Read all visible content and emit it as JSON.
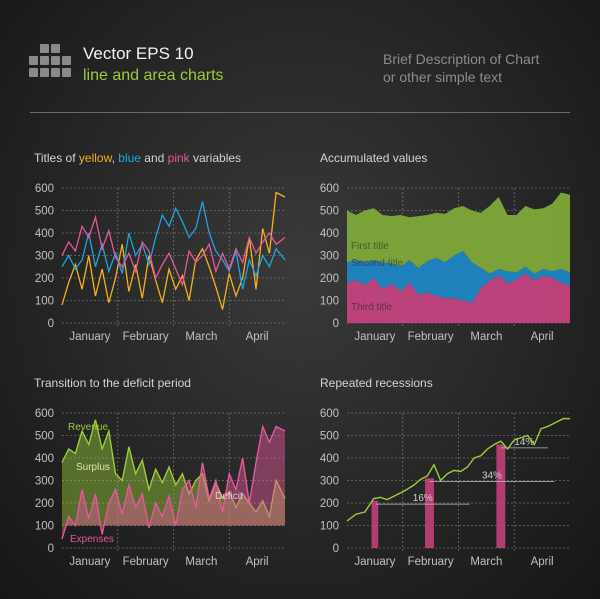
{
  "header": {
    "title": "Vector EPS 10",
    "subtitle": "line and area charts",
    "description_line1": "Brief Description of Chart",
    "description_line2": "or other simple text"
  },
  "colors": {
    "yellow": "#f4b21b",
    "blue": "#1fa3e3",
    "pink": "#e4589c",
    "green": "#9ccc3c",
    "axis_text": "#c0c0c0",
    "grid": "#6f6f6f"
  },
  "panel1": {
    "title_part1": "Titles of ",
    "title_yellow": "yellow",
    "title_sep1": ", ",
    "title_blue": "blue",
    "title_sep2": " and ",
    "title_pink": "pink",
    "title_part2": " variables"
  },
  "panel2": {
    "title": "Accumulated values"
  },
  "panel3": {
    "title": "Transition to the deficit period"
  },
  "panel4": {
    "title": "Repeated recessions"
  },
  "chart_data": [
    {
      "type": "line",
      "ylim": [
        0,
        600
      ],
      "yticks": [
        0,
        100,
        200,
        300,
        400,
        500,
        600
      ],
      "xlim": [
        0,
        100
      ],
      "categories": [
        "January",
        "February",
        "March",
        "April"
      ],
      "category_positions": [
        12.5,
        37.5,
        62.5,
        87.5
      ],
      "grid": true,
      "series": [
        {
          "color": "yellow",
          "x": [
            0,
            3,
            6,
            9,
            12,
            15,
            18,
            21,
            24,
            27,
            30,
            33,
            36,
            39,
            42,
            45,
            48,
            51,
            54,
            57,
            60,
            63,
            66,
            69,
            72,
            75,
            78,
            81,
            84,
            87,
            90,
            93,
            96,
            100
          ],
          "y": [
            80,
            180,
            260,
            150,
            300,
            120,
            240,
            90,
            200,
            350,
            140,
            260,
            110,
            300,
            190,
            90,
            240,
            150,
            210,
            100,
            280,
            330,
            250,
            160,
            60,
            220,
            120,
            200,
            380,
            150,
            420,
            310,
            580,
            560
          ]
        },
        {
          "color": "blue",
          "x": [
            0,
            3,
            6,
            9,
            12,
            15,
            18,
            21,
            24,
            27,
            30,
            33,
            36,
            39,
            42,
            45,
            48,
            51,
            54,
            57,
            60,
            63,
            66,
            69,
            72,
            75,
            78,
            81,
            84,
            87,
            90,
            93,
            96,
            100
          ],
          "y": [
            250,
            300,
            240,
            280,
            400,
            250,
            350,
            230,
            310,
            220,
            400,
            300,
            350,
            260,
            380,
            480,
            430,
            510,
            450,
            380,
            420,
            540,
            400,
            320,
            280,
            230,
            320,
            150,
            280,
            210,
            300,
            250,
            330,
            280
          ]
        },
        {
          "color": "pink",
          "x": [
            0,
            3,
            6,
            9,
            12,
            15,
            18,
            21,
            24,
            27,
            30,
            33,
            36,
            39,
            42,
            45,
            48,
            51,
            54,
            57,
            60,
            63,
            66,
            69,
            72,
            75,
            78,
            81,
            84,
            87,
            90,
            93,
            96,
            100
          ],
          "y": [
            300,
            360,
            320,
            430,
            380,
            470,
            330,
            410,
            290,
            250,
            310,
            230,
            360,
            320,
            200,
            260,
            310,
            240,
            170,
            320,
            270,
            300,
            350,
            230,
            310,
            240,
            330,
            270,
            380,
            310,
            360,
            400,
            350,
            380
          ]
        }
      ]
    },
    {
      "type": "area",
      "ylim": [
        0,
        600
      ],
      "yticks": [
        0,
        100,
        200,
        300,
        400,
        500,
        600
      ],
      "xlim": [
        0,
        100
      ],
      "categories": [
        "January",
        "February",
        "March",
        "April"
      ],
      "category_positions": [
        12.5,
        37.5,
        62.5,
        87.5
      ],
      "stacked": true,
      "grid": true,
      "x": [
        0,
        4,
        8,
        12,
        16,
        20,
        24,
        28,
        32,
        36,
        40,
        44,
        48,
        52,
        56,
        60,
        64,
        68,
        72,
        76,
        80,
        84,
        88,
        92,
        96,
        100
      ],
      "series": [
        {
          "name": "Third title",
          "color": "pink",
          "values": [
            180,
            190,
            170,
            200,
            150,
            175,
            140,
            180,
            125,
            135,
            120,
            110,
            110,
            100,
            90,
            155,
            190,
            210,
            175,
            195,
            220,
            190,
            210,
            200,
            180,
            165
          ]
        },
        {
          "name": "Second title",
          "color": "blue",
          "values": [
            90,
            90,
            100,
            80,
            120,
            90,
            110,
            100,
            120,
            140,
            170,
            160,
            190,
            220,
            180,
            90,
            30,
            30,
            55,
            30,
            30,
            30,
            30,
            30,
            60,
            60
          ]
        },
        {
          "name": "First title",
          "color": "green",
          "values": [
            230,
            200,
            230,
            230,
            210,
            210,
            230,
            190,
            230,
            205,
            200,
            215,
            210,
            200,
            230,
            245,
            300,
            320,
            250,
            255,
            270,
            285,
            270,
            300,
            340,
            345
          ]
        }
      ]
    },
    {
      "type": "area",
      "ylim": [
        0,
        600
      ],
      "yticks": [
        0,
        100,
        200,
        300,
        400,
        500,
        600
      ],
      "xlim": [
        0,
        100
      ],
      "categories": [
        "January",
        "February",
        "March",
        "April"
      ],
      "category_positions": [
        12.5,
        37.5,
        62.5,
        87.5
      ],
      "grid": true,
      "annotations": [
        "Revenue",
        "Surplus",
        "Deficit",
        "Expenses"
      ],
      "series": [
        {
          "name": "Revenue",
          "color": "green",
          "x": [
            0,
            3,
            6,
            9,
            12,
            15,
            18,
            21,
            24,
            27,
            30,
            33,
            36,
            39,
            42,
            45,
            48,
            51,
            54,
            57,
            60,
            63,
            66,
            69,
            72,
            75,
            78,
            81,
            84,
            87,
            90,
            93,
            96,
            100
          ],
          "y": [
            380,
            440,
            420,
            520,
            460,
            570,
            440,
            520,
            330,
            300,
            450,
            330,
            390,
            260,
            350,
            290,
            360,
            280,
            330,
            240,
            300,
            330,
            210,
            290,
            220,
            250,
            180,
            240,
            200,
            160,
            210,
            140,
            300,
            220
          ]
        },
        {
          "name": "Expenses",
          "color": "pink",
          "x": [
            0,
            3,
            6,
            9,
            12,
            15,
            18,
            21,
            24,
            27,
            30,
            33,
            36,
            39,
            42,
            45,
            48,
            51,
            54,
            57,
            60,
            63,
            66,
            69,
            72,
            75,
            78,
            81,
            84,
            87,
            90,
            93,
            96,
            100
          ],
          "y": [
            40,
            140,
            100,
            260,
            130,
            240,
            60,
            200,
            260,
            150,
            280,
            180,
            240,
            90,
            200,
            140,
            230,
            100,
            260,
            300,
            180,
            380,
            220,
            300,
            160,
            330,
            260,
            400,
            200,
            380,
            540,
            470,
            540,
            520
          ]
        }
      ]
    },
    {
      "type": "line",
      "ylim": [
        0,
        600
      ],
      "yticks": [
        0,
        100,
        200,
        300,
        400,
        500,
        600
      ],
      "xlim": [
        0,
        100
      ],
      "categories": [
        "January",
        "February",
        "March",
        "April"
      ],
      "category_positions": [
        12.5,
        37.5,
        62.5,
        87.5
      ],
      "grid": true,
      "series": [
        {
          "color": "green",
          "x": [
            0,
            4,
            8,
            12,
            15,
            18,
            22,
            26,
            30,
            33,
            36,
            39,
            42,
            45,
            48,
            51,
            54,
            57,
            60,
            63,
            66,
            69,
            72,
            75,
            78,
            81,
            84,
            87,
            90,
            94,
            97,
            100
          ],
          "y": [
            120,
            150,
            160,
            220,
            225,
            215,
            235,
            255,
            280,
            305,
            320,
            370,
            300,
            330,
            345,
            340,
            360,
            400,
            410,
            440,
            460,
            475,
            440,
            480,
            490,
            500,
            460,
            530,
            540,
            560,
            575,
            575
          ]
        }
      ],
      "recession_bars": [
        {
          "x_start": 11,
          "x_end": 14,
          "y": 210
        },
        {
          "x_start": 35,
          "x_end": 39,
          "y": 310
        },
        {
          "x_start": 67,
          "x_end": 71,
          "y": 460
        }
      ],
      "annotations": [
        {
          "text": "16%",
          "x1": 13,
          "x2": 55,
          "y": 195
        },
        {
          "text": "34%",
          "x1": 37,
          "x2": 93,
          "y": 295
        },
        {
          "text": "14%",
          "x1": 69,
          "x2": 90,
          "y": 445
        }
      ]
    }
  ]
}
